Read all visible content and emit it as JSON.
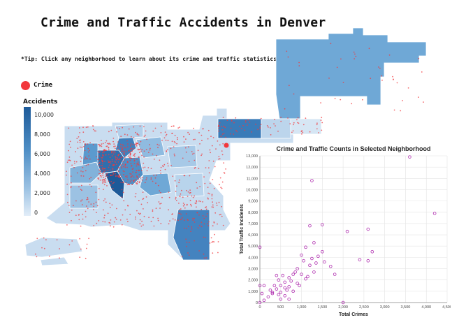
{
  "page": {
    "title": "Crime and Traffic Accidents in Denver",
    "tip": "*Tip: Click any neighborhood to learn about its crime and traffic statistics!"
  },
  "legend": {
    "crime_label": "Crime",
    "crime_color": "#f2383c",
    "accidents_title": "Accidents",
    "accidents_ticks": [
      "10,000",
      "8,000",
      "6,000",
      "4,000",
      "2,000",
      "0"
    ]
  },
  "colors": {
    "map_dark": "#1d5a99",
    "map_mid": "#4f8fc6",
    "map_light": "#c9ddf0",
    "scatter_point": "#b030b0"
  },
  "chart_data": {
    "type": "scatter",
    "title": "Crime and Traffic Counts in Selected Neighborhood",
    "xlabel": "Total Crimes",
    "ylabel": "Total Traffic Incidents",
    "xlim": [
      0,
      4500
    ],
    "ylim": [
      0,
      13000
    ],
    "x_ticks": [
      "0",
      "500",
      "1,000",
      "1,500",
      "2,000",
      "2,500",
      "3,000",
      "3,500",
      "4,000",
      "4,500"
    ],
    "y_ticks": [
      "0",
      "1,000",
      "2,000",
      "3,000",
      "4,000",
      "5,000",
      "6,000",
      "7,000",
      "8,000",
      "9,000",
      "10,000",
      "11,000",
      "12,000",
      "13,000"
    ],
    "points": [
      [
        3600,
        12900
      ],
      [
        4200,
        7900
      ],
      [
        1250,
        10800
      ],
      [
        1500,
        6900
      ],
      [
        1200,
        6800
      ],
      [
        2100,
        6300
      ],
      [
        2600,
        6500
      ],
      [
        2700,
        4500
      ],
      [
        2600,
        3700
      ],
      [
        2400,
        3800
      ],
      [
        1300,
        5300
      ],
      [
        1100,
        4900
      ],
      [
        1500,
        4500
      ],
      [
        1400,
        4100
      ],
      [
        1700,
        3200
      ],
      [
        1550,
        3600
      ],
      [
        1000,
        4200
      ],
      [
        1800,
        2500
      ],
      [
        1350,
        3500
      ],
      [
        1200,
        3300
      ],
      [
        900,
        3000
      ],
      [
        800,
        2500
      ],
      [
        700,
        2200
      ],
      [
        600,
        1800
      ],
      [
        500,
        1500
      ],
      [
        400,
        1200
      ],
      [
        300,
        900
      ],
      [
        200,
        500
      ],
      [
        100,
        200
      ],
      [
        0,
        0
      ],
      [
        0,
        4900
      ],
      [
        100,
        1500
      ],
      [
        300,
        800
      ],
      [
        700,
        300
      ],
      [
        500,
        900
      ],
      [
        600,
        1300
      ],
      [
        900,
        1700
      ],
      [
        1000,
        2500
      ],
      [
        1100,
        2100
      ],
      [
        1300,
        2700
      ],
      [
        750,
        1900
      ],
      [
        650,
        1100
      ],
      [
        550,
        2400
      ],
      [
        450,
        700
      ],
      [
        350,
        1500
      ],
      [
        250,
        1100
      ],
      [
        1050,
        3700
      ],
      [
        850,
        2700
      ],
      [
        950,
        1500
      ],
      [
        1250,
        3900
      ],
      [
        2000,
        0
      ],
      [
        500,
        300
      ],
      [
        700,
        1400
      ],
      [
        800,
        1000
      ],
      [
        600,
        600
      ],
      [
        450,
        2000
      ],
      [
        1150,
        2300
      ],
      [
        400,
        2400
      ],
      [
        0,
        1500
      ],
      [
        50,
        800
      ]
    ]
  }
}
